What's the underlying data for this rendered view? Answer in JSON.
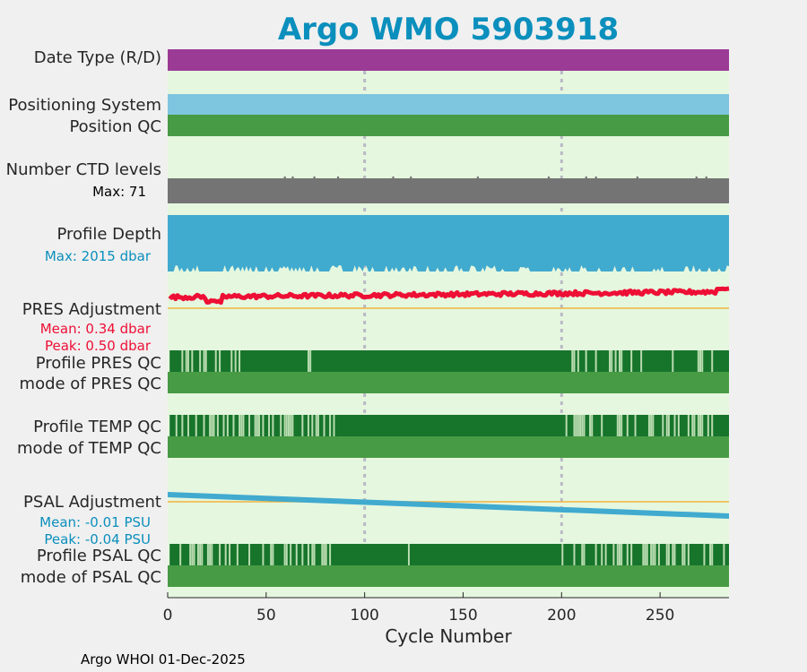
{
  "chart_data": {
    "type": "bar",
    "title": "Argo WMO 5903918",
    "xlabel": "Cycle Number",
    "xlim": [
      0,
      285
    ],
    "x_ticks": [
      0,
      50,
      100,
      150,
      200,
      250
    ],
    "x_ticks_label": [
      "0",
      "50",
      "100",
      "150",
      "200",
      "250"
    ],
    "dashed_gridlines_at": [
      100,
      200
    ],
    "footer": "Argo WHOI 01-Dec-2025",
    "n_cycles": 285,
    "rows": {
      "date_type": {
        "label": "Date Type (R/D)",
        "color": "#9b3b96"
      },
      "positioning_system": {
        "label": "Positioning System",
        "color": "#7ec5df"
      },
      "position_qc": {
        "label": "Position QC",
        "color": "#479b44"
      },
      "ctd_levels": {
        "label": "Number CTD levels",
        "max_text": "Max: 71",
        "max": 71,
        "color": "#747474"
      },
      "profile_depth": {
        "label": "Profile Depth",
        "max_text": "Max: 2015 dbar",
        "max": 2015,
        "color": "#41aacf"
      },
      "pres_adjustment": {
        "label": "PRES Adjustment",
        "mean_text": "Mean: 0.34 dbar",
        "peak_text": "Peak: 0.50 dbar",
        "mean": 0.34,
        "peak": 0.5,
        "color": "#ee0f35",
        "zero_line_color": "#f2b33d"
      },
      "profile_pres_qc": {
        "label": "Profile PRES QC",
        "color": "#17742b",
        "gap_color": "#b9dcb0"
      },
      "mode_pres_qc": {
        "label": "mode of PRES QC",
        "color": "#479b44"
      },
      "profile_temp_qc": {
        "label": "Profile TEMP QC",
        "color": "#17742b",
        "gap_color": "#b9dcb0"
      },
      "mode_temp_qc": {
        "label": "mode of TEMP QC",
        "color": "#479b44"
      },
      "psal_adjustment": {
        "label": "PSAL Adjustment",
        "mean_text": "Mean: -0.01 PSU",
        "peak_text": "Peak: -0.04 PSU",
        "mean": -0.01,
        "peak": -0.04,
        "start": 0.02,
        "end": -0.04,
        "color": "#41aacf",
        "zero_line_color": "#f2b33d"
      },
      "profile_psal_qc": {
        "label": "Profile PSAL QC",
        "color": "#17742b",
        "gap_color": "#b9dcb0"
      },
      "mode_psal_qc": {
        "label": "mode of PSAL QC",
        "color": "#479b44"
      }
    },
    "colors": {
      "plot_bg": "#e5f7df",
      "page_bg": "#f0f0f0",
      "title": "#0b8fbd",
      "text": "#262626",
      "grid": "#b9b9c4"
    }
  }
}
